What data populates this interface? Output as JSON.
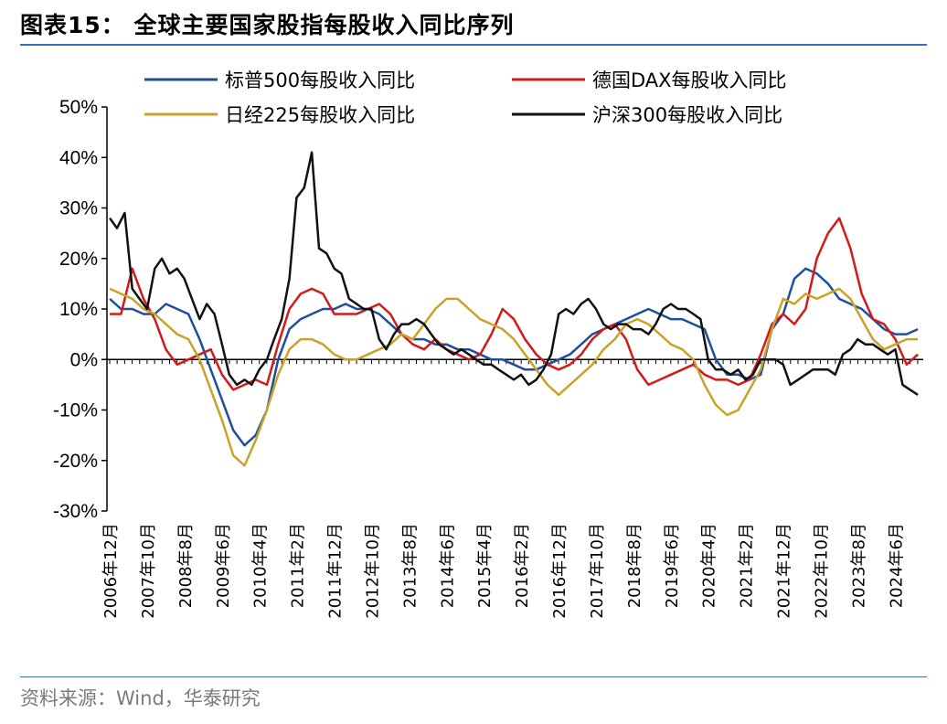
{
  "header": {
    "title": "图表15：   全球主要国家股指每股收入同比序列"
  },
  "footer": {
    "source": "资料来源：Wind，华泰研究"
  },
  "chart_data": {
    "type": "line",
    "title": "图表15：   全球主要国家股指每股收入同比序列",
    "xlabel": "",
    "ylabel": "",
    "ylim": [
      -30,
      50
    ],
    "yticks": [
      "50%",
      "40%",
      "30%",
      "20%",
      "10%",
      "0%",
      "-10%",
      "-20%",
      "-30%"
    ],
    "y_tick_values": [
      50,
      40,
      30,
      20,
      10,
      0,
      -10,
      -20,
      -30
    ],
    "xlim": [
      2006.917,
      2025.0
    ],
    "x_tick_labels": [
      "2006年12月",
      "2007年10月",
      "2008年8月",
      "2009年6月",
      "2010年4月",
      "2011年2月",
      "2011年12月",
      "2012年10月",
      "2013年8月",
      "2014年6月",
      "2015年4月",
      "2016年2月",
      "2016年12月",
      "2017年10月",
      "2018年8月",
      "2019年6月",
      "2020年4月",
      "2021年2月",
      "2021年12月",
      "2022年10月",
      "2023年8月",
      "2024年6月"
    ],
    "x_tick_values": [
      2006.917,
      2007.75,
      2008.583,
      2009.417,
      2010.25,
      2011.083,
      2011.917,
      2012.75,
      2013.583,
      2014.417,
      2015.25,
      2016.083,
      2016.917,
      2017.75,
      2018.583,
      2019.417,
      2020.25,
      2021.083,
      2021.917,
      2022.75,
      2023.583,
      2024.417
    ],
    "grid": false,
    "legend_position": "top",
    "series": [
      {
        "name": "标普500每股收入同比",
        "color": "#1f4e9c",
        "x": [
          2006.92,
          2007.17,
          2007.42,
          2007.67,
          2007.92,
          2008.17,
          2008.42,
          2008.67,
          2008.92,
          2009.17,
          2009.42,
          2009.67,
          2009.92,
          2010.17,
          2010.42,
          2010.67,
          2010.92,
          2011.17,
          2011.42,
          2011.67,
          2011.92,
          2012.17,
          2012.42,
          2012.67,
          2012.92,
          2013.17,
          2013.42,
          2013.67,
          2013.92,
          2014.17,
          2014.42,
          2014.67,
          2014.92,
          2015.17,
          2015.42,
          2015.67,
          2015.92,
          2016.17,
          2016.42,
          2016.67,
          2016.92,
          2017.17,
          2017.42,
          2017.67,
          2017.92,
          2018.17,
          2018.42,
          2018.67,
          2018.92,
          2019.17,
          2019.42,
          2019.67,
          2019.92,
          2020.17,
          2020.42,
          2020.67,
          2020.92,
          2021.17,
          2021.42,
          2021.67,
          2021.92,
          2022.17,
          2022.42,
          2022.67,
          2022.92,
          2023.17,
          2023.42,
          2023.67,
          2023.92,
          2024.17,
          2024.42,
          2024.67,
          2024.92
        ],
        "y": [
          12,
          10,
          10,
          9,
          9,
          11,
          10,
          9,
          4,
          -2,
          -8,
          -14,
          -17,
          -15,
          -10,
          0,
          6,
          8,
          9,
          10,
          10,
          11,
          10,
          10,
          9,
          7,
          5,
          4,
          4,
          3,
          3,
          2,
          2,
          1,
          0,
          0,
          -1,
          -2,
          -2,
          -1,
          0,
          1,
          3,
          5,
          6,
          7,
          8,
          9,
          10,
          9,
          8,
          8,
          7,
          6,
          0,
          -3,
          -3,
          -4,
          -3,
          6,
          9,
          16,
          18,
          17,
          15,
          12,
          11,
          10,
          8,
          6,
          5,
          5,
          6
        ]
      },
      {
        "name": "德国DAX每股收入同比",
        "color": "#d21a1a",
        "x": [
          2006.92,
          2007.17,
          2007.42,
          2007.67,
          2007.92,
          2008.17,
          2008.42,
          2008.67,
          2008.92,
          2009.17,
          2009.42,
          2009.67,
          2009.92,
          2010.17,
          2010.42,
          2010.67,
          2010.92,
          2011.17,
          2011.42,
          2011.67,
          2011.92,
          2012.17,
          2012.42,
          2012.67,
          2012.92,
          2013.17,
          2013.42,
          2013.67,
          2013.92,
          2014.17,
          2014.42,
          2014.67,
          2014.92,
          2015.17,
          2015.42,
          2015.67,
          2015.92,
          2016.17,
          2016.42,
          2016.67,
          2016.92,
          2017.17,
          2017.42,
          2017.67,
          2017.92,
          2018.17,
          2018.42,
          2018.67,
          2018.92,
          2019.17,
          2019.42,
          2019.67,
          2019.92,
          2020.17,
          2020.42,
          2020.67,
          2020.92,
          2021.17,
          2021.42,
          2021.67,
          2021.92,
          2022.17,
          2022.42,
          2022.67,
          2022.92,
          2023.17,
          2023.42,
          2023.67,
          2023.92,
          2024.17,
          2024.42,
          2024.67,
          2024.92
        ],
        "y": [
          9,
          9,
          18,
          12,
          8,
          2,
          -1,
          0,
          1,
          2,
          -3,
          -6,
          -5,
          -4,
          -5,
          3,
          10,
          13,
          14,
          13,
          9,
          9,
          9,
          10,
          11,
          9,
          5,
          3,
          2,
          4,
          2,
          1,
          0,
          1,
          5,
          10,
          8,
          4,
          1,
          -1,
          -2,
          -1,
          1,
          4,
          6,
          7,
          4,
          -2,
          -5,
          -4,
          -3,
          -2,
          -1,
          -3,
          -4,
          -4,
          -5,
          -4,
          1,
          7,
          9,
          7,
          10,
          20,
          25,
          28,
          22,
          13,
          8,
          7,
          4,
          -1,
          1
        ]
      },
      {
        "name": "日经225每股收入同比",
        "color": "#c9a227",
        "x": [
          2006.92,
          2007.17,
          2007.42,
          2007.67,
          2007.92,
          2008.17,
          2008.42,
          2008.67,
          2008.92,
          2009.17,
          2009.42,
          2009.67,
          2009.92,
          2010.17,
          2010.42,
          2010.67,
          2010.92,
          2011.17,
          2011.42,
          2011.67,
          2011.92,
          2012.17,
          2012.42,
          2012.67,
          2012.92,
          2013.17,
          2013.42,
          2013.67,
          2013.92,
          2014.17,
          2014.42,
          2014.67,
          2014.92,
          2015.17,
          2015.42,
          2015.67,
          2015.92,
          2016.17,
          2016.42,
          2016.67,
          2016.92,
          2017.17,
          2017.42,
          2017.67,
          2017.92,
          2018.17,
          2018.42,
          2018.67,
          2018.92,
          2019.17,
          2019.42,
          2019.67,
          2019.92,
          2020.17,
          2020.42,
          2020.67,
          2020.92,
          2021.17,
          2021.42,
          2021.67,
          2021.92,
          2022.17,
          2022.42,
          2022.67,
          2022.92,
          2023.17,
          2023.42,
          2023.67,
          2023.92,
          2024.17,
          2024.42,
          2024.67,
          2024.92
        ],
        "y": [
          14,
          13,
          12,
          10,
          9,
          7,
          5,
          4,
          0,
          -6,
          -12,
          -19,
          -21,
          -16,
          -10,
          -3,
          2,
          4,
          4,
          3,
          1,
          0,
          0,
          1,
          2,
          3,
          5,
          4,
          7,
          10,
          12,
          12,
          10,
          8,
          7,
          6,
          4,
          1,
          -2,
          -5,
          -7,
          -5,
          -3,
          -1,
          2,
          4,
          7,
          8,
          7,
          5,
          3,
          2,
          0,
          -5,
          -9,
          -11,
          -10,
          -6,
          -2,
          6,
          12,
          11,
          13,
          12,
          13,
          14,
          12,
          8,
          4,
          2,
          3,
          4,
          4
        ]
      },
      {
        "name": "沪深300每股收入同比",
        "color": "#111111",
        "x": [
          2006.92,
          2007.08,
          2007.25,
          2007.42,
          2007.58,
          2007.75,
          2007.92,
          2008.08,
          2008.25,
          2008.42,
          2008.58,
          2008.75,
          2008.92,
          2009.08,
          2009.25,
          2009.42,
          2009.58,
          2009.75,
          2009.92,
          2010.08,
          2010.25,
          2010.42,
          2010.58,
          2010.75,
          2010.92,
          2011.08,
          2011.25,
          2011.42,
          2011.58,
          2011.75,
          2011.92,
          2012.08,
          2012.25,
          2012.42,
          2012.58,
          2012.75,
          2012.92,
          2013.08,
          2013.25,
          2013.42,
          2013.58,
          2013.75,
          2013.92,
          2014.08,
          2014.25,
          2014.42,
          2014.58,
          2014.75,
          2014.92,
          2015.08,
          2015.25,
          2015.42,
          2015.58,
          2015.75,
          2015.92,
          2016.08,
          2016.25,
          2016.42,
          2016.58,
          2016.75,
          2016.92,
          2017.08,
          2017.25,
          2017.42,
          2017.58,
          2017.75,
          2017.92,
          2018.08,
          2018.25,
          2018.42,
          2018.58,
          2018.75,
          2018.92,
          2019.08,
          2019.25,
          2019.42,
          2019.58,
          2019.75,
          2019.92,
          2020.08,
          2020.25,
          2020.42,
          2020.58,
          2020.75,
          2020.92,
          2021.08,
          2021.25,
          2021.42,
          2021.58,
          2021.75,
          2021.92,
          2022.08,
          2022.25,
          2022.42,
          2022.58,
          2022.75,
          2022.92,
          2023.08,
          2023.25,
          2023.42,
          2023.58,
          2023.75,
          2023.92,
          2024.08,
          2024.25,
          2024.42,
          2024.58,
          2024.75,
          2024.92
        ],
        "y": [
          28,
          26,
          29,
          14,
          12,
          10,
          18,
          20,
          17,
          18,
          16,
          12,
          8,
          11,
          9,
          3,
          -3,
          -5,
          -4,
          -5,
          -2,
          0,
          4,
          8,
          16,
          32,
          34,
          41,
          22,
          21,
          18,
          17,
          12,
          11,
          10,
          10,
          4,
          2,
          5,
          7,
          7,
          8,
          7,
          5,
          3,
          2,
          1,
          2,
          1,
          0,
          -1,
          -1,
          -2,
          -3,
          -4,
          -3,
          -5,
          -4,
          -2,
          1,
          9,
          10,
          9,
          11,
          12,
          10,
          7,
          6,
          7,
          7,
          6,
          6,
          5,
          7,
          10,
          11,
          10,
          10,
          9,
          8,
          0,
          -2,
          -2,
          -3,
          -2,
          -4,
          -3,
          0,
          0,
          0,
          -1,
          -5,
          -4,
          -3,
          -2,
          -2,
          -2,
          -3,
          1,
          2,
          4,
          3,
          3,
          2,
          1,
          2,
          -5,
          -6,
          -7
        ]
      }
    ]
  }
}
